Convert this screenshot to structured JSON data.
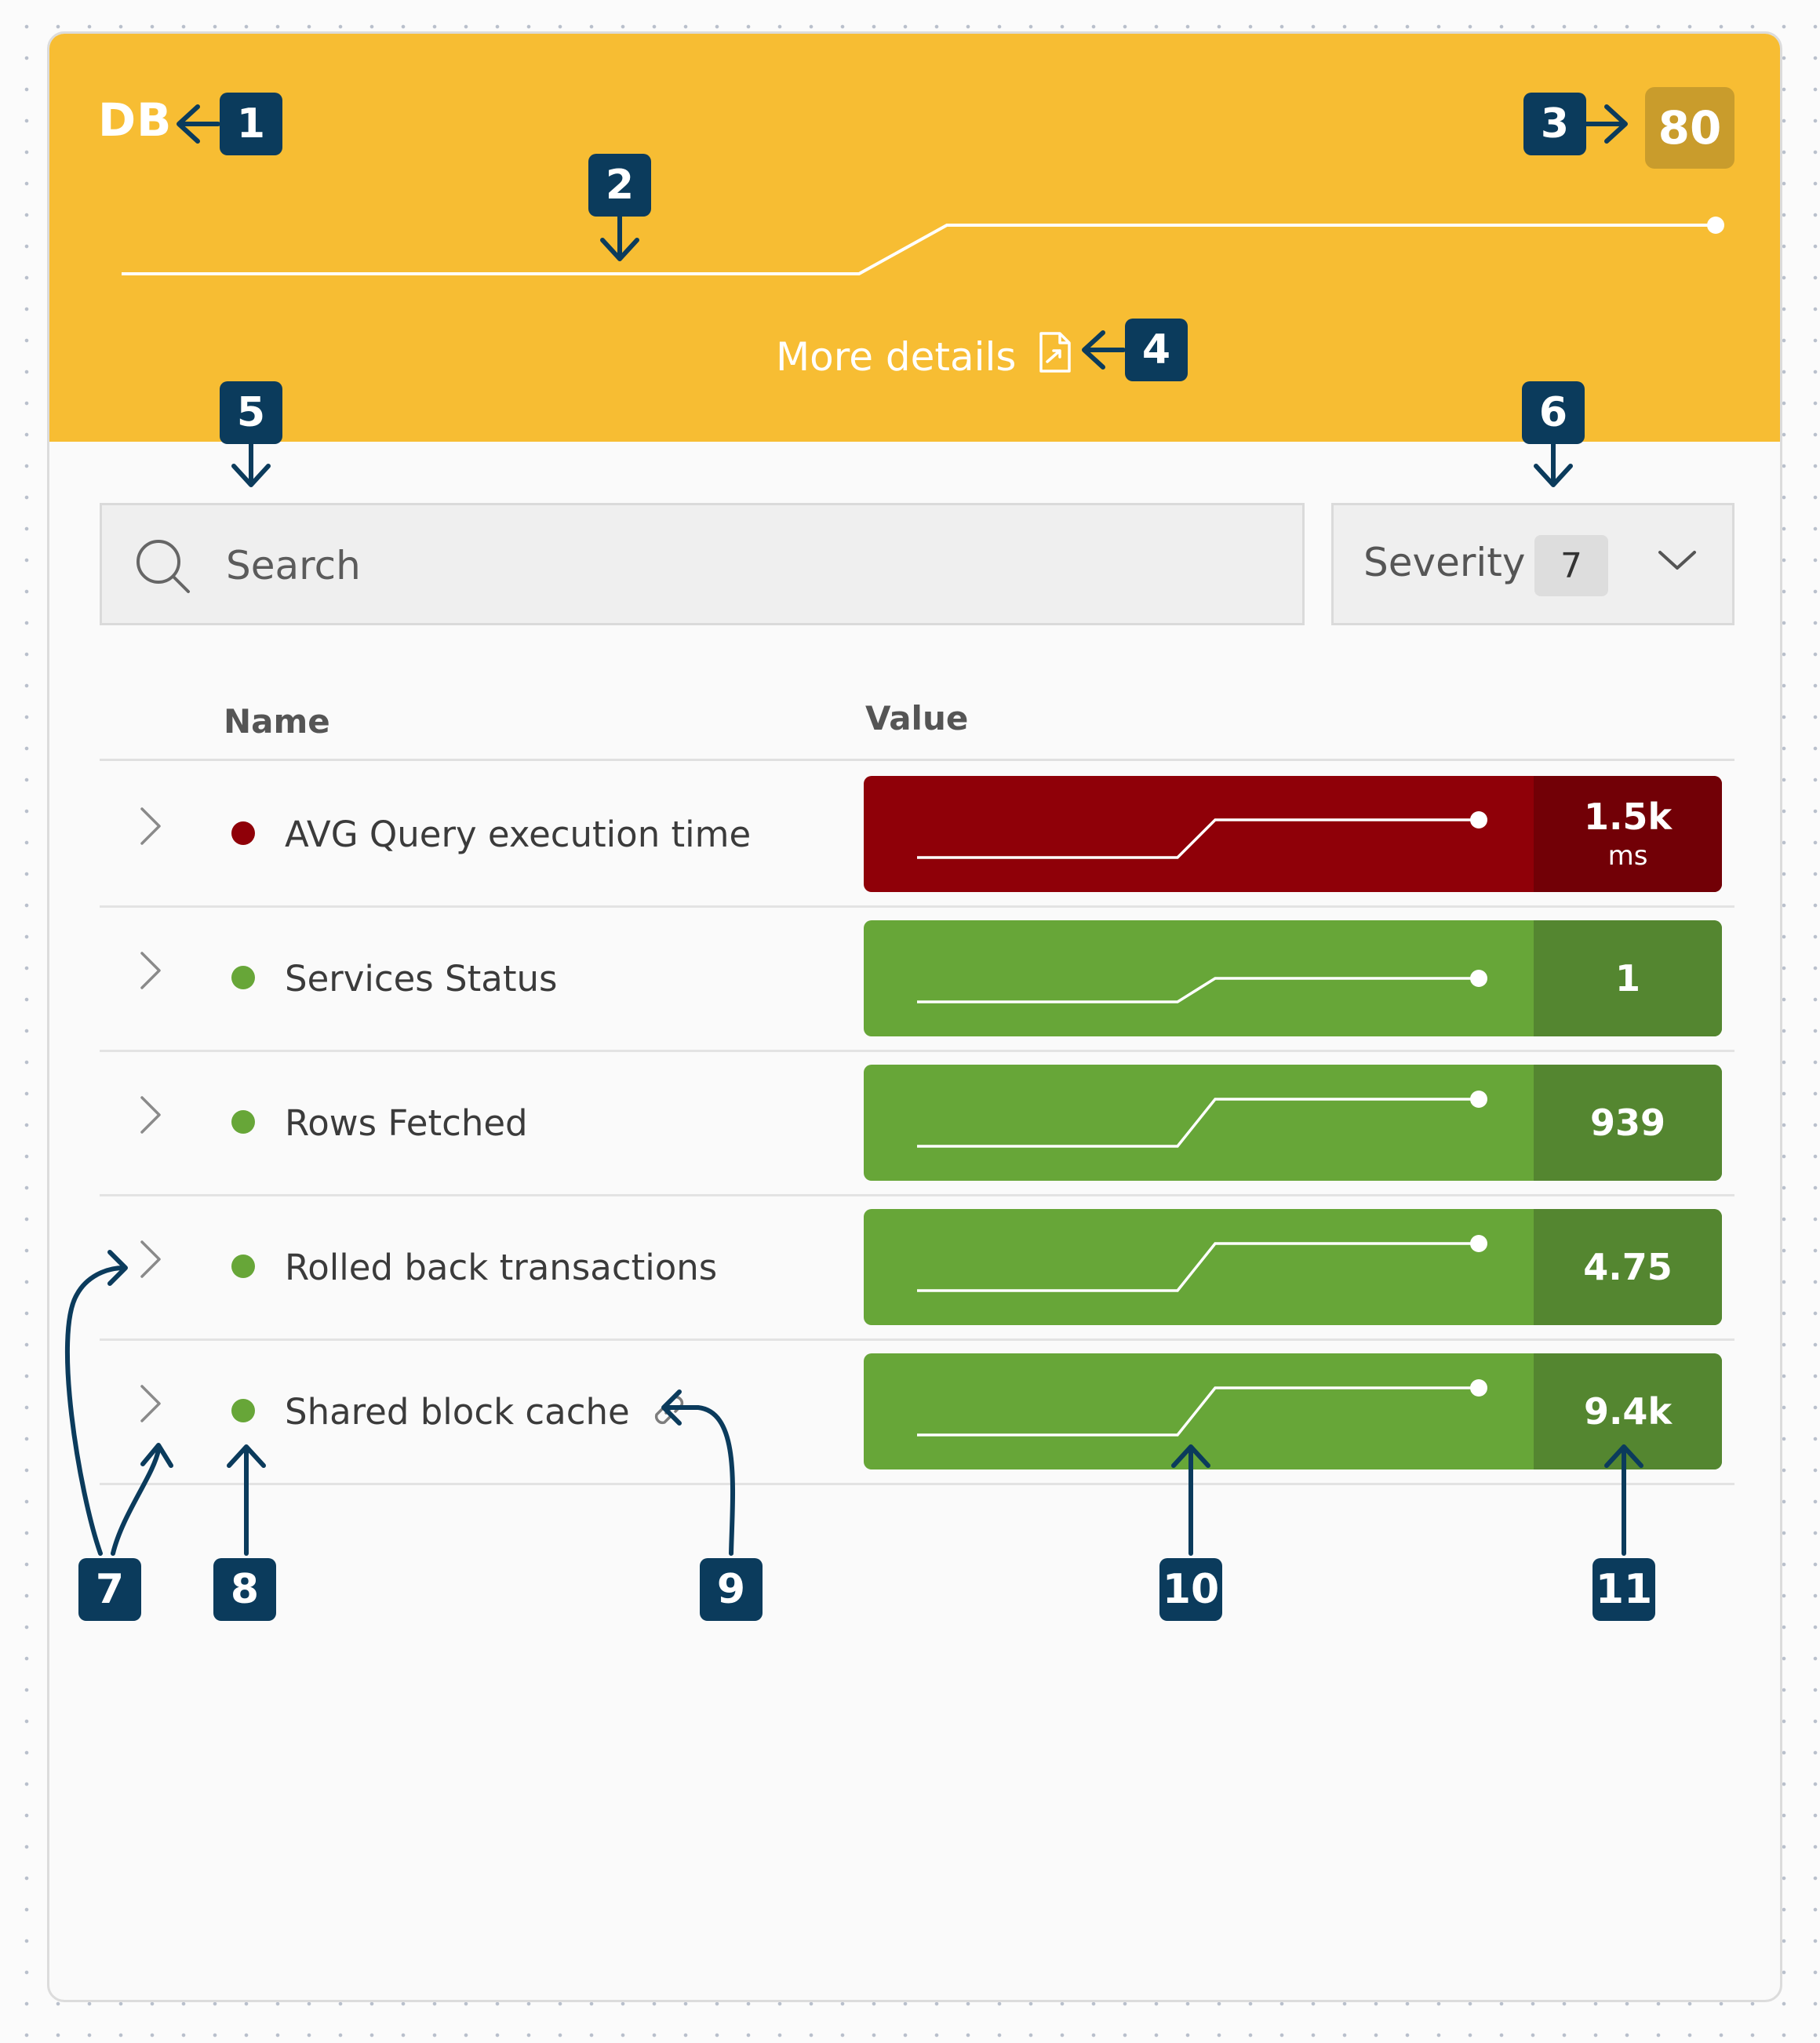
{
  "header": {
    "title": "DB",
    "score": "80",
    "more_details_label": "More details",
    "color": "#f7bd33",
    "score_badge_color": "#c99c2c"
  },
  "search": {
    "placeholder": "Search"
  },
  "severity_filter": {
    "label": "Severity",
    "count": "7"
  },
  "table": {
    "columns": {
      "name": "Name",
      "value": "Value"
    },
    "rows": [
      {
        "name": "AVG Query execution time",
        "value": "1.5k",
        "unit": "ms",
        "status": "critical",
        "dot_color": "#8f0008",
        "pill_color": "#8f0008",
        "value_bg": "#720006",
        "has_link": false
      },
      {
        "name": "Services Status",
        "value": "1",
        "unit": "",
        "status": "ok",
        "dot_color": "#67a638",
        "pill_color": "#67a638",
        "value_bg": "#548630",
        "has_link": false
      },
      {
        "name": "Rows Fetched",
        "value": "939",
        "unit": "",
        "status": "ok",
        "dot_color": "#67a638",
        "pill_color": "#67a638",
        "value_bg": "#548630",
        "has_link": false
      },
      {
        "name": "Rolled back transactions",
        "value": "4.75",
        "unit": "",
        "status": "ok",
        "dot_color": "#67a638",
        "pill_color": "#67a638",
        "value_bg": "#548630",
        "has_link": false
      },
      {
        "name": "Shared block cache",
        "value": "9.4k",
        "unit": "",
        "status": "ok",
        "dot_color": "#67a638",
        "pill_color": "#67a638",
        "value_bg": "#548630",
        "has_link": true
      }
    ]
  },
  "annotations": [
    "1",
    "2",
    "3",
    "4",
    "5",
    "6",
    "7",
    "8",
    "9",
    "10",
    "11"
  ],
  "annotation_color": "#0b3b5c",
  "icons": [
    "search-icon",
    "chevron-down-icon",
    "chevron-right-icon",
    "external-document-icon",
    "link-icon"
  ]
}
